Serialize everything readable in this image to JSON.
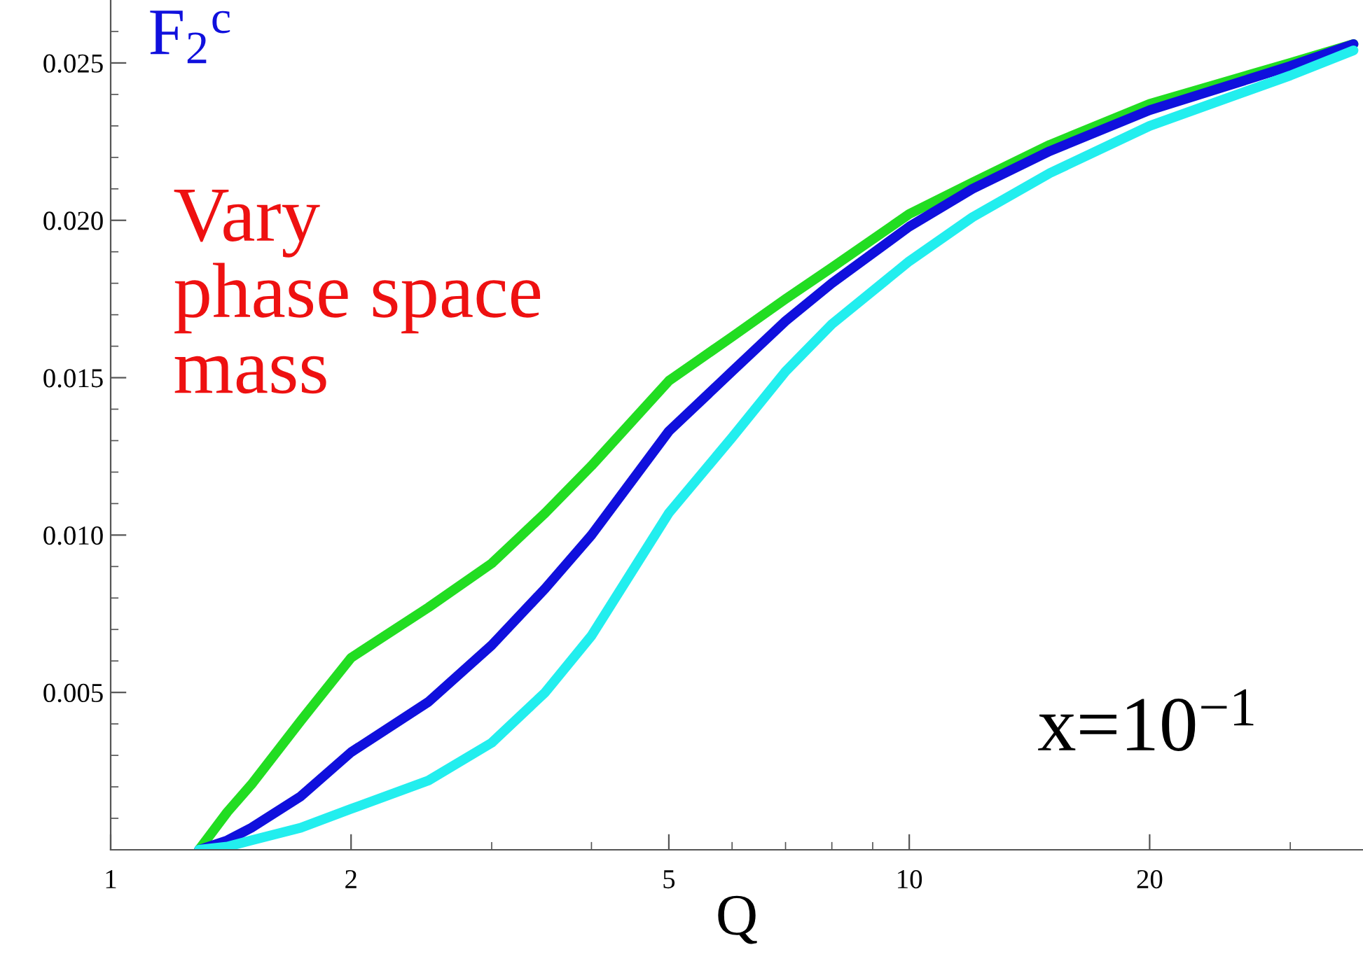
{
  "chart_data": {
    "type": "line",
    "xlabel": "Q",
    "log": "x",
    "xlim": [
      1,
      37
    ],
    "ylim": [
      0,
      0.027
    ],
    "xticks": [
      1,
      2,
      5,
      10,
      20,
      {
        "value": 3,
        "label": null
      },
      {
        "value": 4,
        "label": null
      },
      {
        "value": 6,
        "label": null
      },
      {
        "value": 7,
        "label": null
      },
      {
        "value": 8,
        "label": null
      },
      {
        "value": 9,
        "label": null
      },
      {
        "value": 30,
        "label": null
      }
    ],
    "yticks": [
      {
        "value": 0.005,
        "label": "0.005"
      },
      {
        "value": 0.01,
        "label": "0.010"
      },
      {
        "value": 0.015,
        "label": "0.015"
      },
      {
        "value": 0.02,
        "label": "0.020"
      },
      {
        "value": 0.025,
        "label": "0.025"
      },
      {
        "value": 0.001,
        "label": null
      },
      {
        "value": 0.002,
        "label": null
      },
      {
        "value": 0.003,
        "label": null
      },
      {
        "value": 0.004,
        "label": null
      },
      {
        "value": 0.006,
        "label": null
      },
      {
        "value": 0.007,
        "label": null
      },
      {
        "value": 0.008,
        "label": null
      },
      {
        "value": 0.009,
        "label": null
      },
      {
        "value": 0.011,
        "label": null
      },
      {
        "value": 0.012,
        "label": null
      },
      {
        "value": 0.013,
        "label": null
      },
      {
        "value": 0.014,
        "label": null
      },
      {
        "value": 0.016,
        "label": null
      },
      {
        "value": 0.017,
        "label": null
      },
      {
        "value": 0.018,
        "label": null
      },
      {
        "value": 0.019,
        "label": null
      },
      {
        "value": 0.021,
        "label": null
      },
      {
        "value": 0.022,
        "label": null
      },
      {
        "value": 0.023,
        "label": null
      },
      {
        "value": 0.024,
        "label": null
      },
      {
        "value": 0.026,
        "label": null
      }
    ],
    "grid": false,
    "marker": "none",
    "line_style": "solid",
    "x": [
      1.29,
      1.4,
      1.5,
      1.73,
      2,
      2.5,
      3,
      3.5,
      4,
      5,
      6,
      7,
      8,
      10,
      12,
      15,
      20,
      30,
      36
    ],
    "series": [
      {
        "color": "#22dd22",
        "values": [
          0,
          0.0012,
          0.00207,
          0.0041,
          0.0061,
          0.0077,
          0.0091,
          0.0107,
          0.0122,
          0.0149,
          0.0163,
          0.0175,
          0.0185,
          0.0202,
          0.0212,
          0.0224,
          0.0237,
          0.025,
          0.0256
        ]
      },
      {
        "color": "#1010dd",
        "values": [
          0,
          0.0003,
          0.0007,
          0.0017,
          0.0031,
          0.0047,
          0.0065,
          0.0083,
          0.01,
          0.0133,
          0.0152,
          0.0168,
          0.018,
          0.0198,
          0.021,
          0.0222,
          0.0235,
          0.0249,
          0.0256
        ]
      },
      {
        "color": "#22eeee",
        "values": [
          0,
          0.0001,
          0.0003,
          0.0007,
          0.0013,
          0.0022,
          0.0034,
          0.005,
          0.0068,
          0.0107,
          0.0131,
          0.0152,
          0.0167,
          0.0187,
          0.0201,
          0.0215,
          0.023,
          0.0246,
          0.0254
        ]
      }
    ],
    "annotations": [
      "F$_{2}$$^{c}$",
      "Vary\nphase space\nmass",
      "x=10$^{−1}$"
    ]
  }
}
